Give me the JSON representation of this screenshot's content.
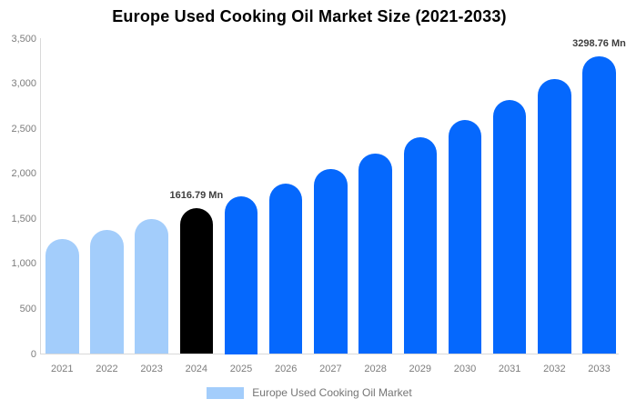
{
  "title": "Europe Used Cooking Oil Market Size (2021-2033)",
  "chart_data": {
    "type": "bar",
    "categories": [
      "2021",
      "2022",
      "2023",
      "2024",
      "2025",
      "2026",
      "2027",
      "2028",
      "2029",
      "2030",
      "2031",
      "2032",
      "2033"
    ],
    "series": [
      {
        "name": "Europe Used Cooking Oil Market",
        "values": [
          1275,
          1380,
          1494,
          1616.79,
          1750,
          1895,
          2051,
          2220,
          2403,
          2602,
          2816,
          3049,
          3298.76
        ]
      }
    ],
    "title": "Europe Used Cooking Oil Market Size (2021-2033)",
    "xlabel": "",
    "ylabel": "",
    "ylim": [
      0,
      3500
    ],
    "yticks": [
      0,
      500,
      1000,
      1500,
      2000,
      2500,
      3000,
      3500
    ],
    "ytick_labels": [
      "0",
      "500",
      "1,000",
      "1,500",
      "2,000",
      "2,500",
      "3,000",
      "3,500"
    ],
    "grid": false,
    "legend_position": "bottom",
    "bar_roles": [
      "historical",
      "historical",
      "historical",
      "base_year",
      "forecast",
      "forecast",
      "forecast",
      "forecast",
      "forecast",
      "forecast",
      "forecast",
      "forecast",
      "forecast"
    ],
    "role_colors": {
      "historical": "#A3CDFB",
      "base_year": "#000000",
      "forecast": "#0568FD"
    },
    "annotations": [
      {
        "category": "2024",
        "text": "1616.79 Mn"
      },
      {
        "category": "2033",
        "text": "3298.76 Mn"
      }
    ]
  },
  "legend": {
    "label": "Europe Used Cooking Oil Market",
    "swatch_color": "#A3CDFB"
  },
  "colors": {
    "axis_line": "#d9d9d9",
    "tick_text": "#7d7d7d",
    "title_text": "#000000",
    "annotation_text": "#3d3d3d"
  }
}
